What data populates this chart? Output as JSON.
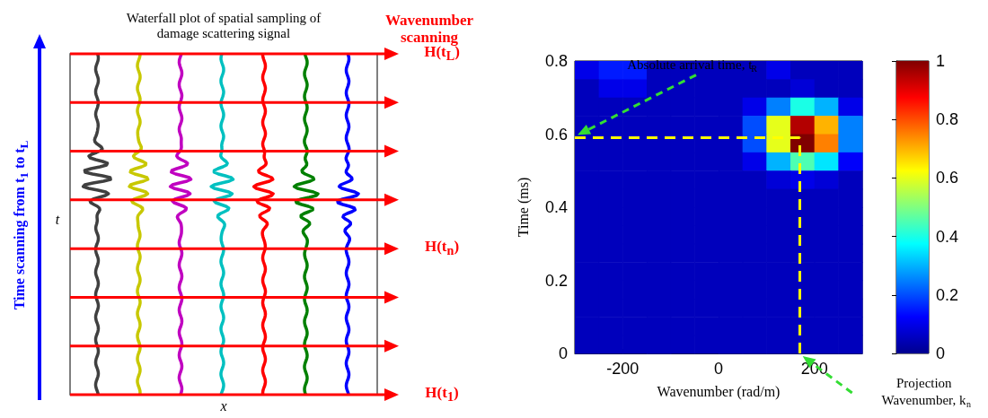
{
  "chart_data": [
    {
      "type": "other",
      "title": "Waterfall plot of spatial sampling of damage scattering signal",
      "xlabel": "x",
      "ylabel": "t",
      "annotations": [
        "H(t$_{L}$)",
        "H(t$_{n}$)",
        "H(t$_{1}$)",
        "Wavenumber scanning",
        "Time scanning from t$_{1}$ to t$_{L}$"
      ]
    },
    {
      "type": "heatmap",
      "xlabel": "Wavenumber (rad/m)",
      "ylabel": "Time (ms)",
      "xlim": [
        -300,
        300
      ],
      "xticks": [
        -200,
        0,
        200
      ],
      "ylim": [
        0,
        0.8
      ],
      "yticks": [
        0,
        0.2,
        0.4,
        0.6,
        0.8
      ],
      "clim": [
        0,
        1
      ],
      "cticks": [
        0,
        0.2,
        0.4,
        0.6,
        0.8,
        1
      ],
      "annotations": [
        "Absolute arrival time, t$_{R}$",
        "Projection Wavenumber, k$_{n}$"
      ],
      "ref_lines": [
        {
          "axis": "y",
          "value": 0.59,
          "color": "#ffff00",
          "line_style": "dashed"
        },
        {
          "axis": "x",
          "value": 170,
          "color": "#ffff00",
          "line_style": "dashed"
        }
      ],
      "cells": [
        [
          0.1,
          0.15,
          0.15,
          0.05,
          0.05,
          0.05,
          0.05,
          0.05,
          0.1,
          0.05,
          0.05,
          0.05
        ],
        [
          0.05,
          0.1,
          0.1,
          0.05,
          0.05,
          0.05,
          0.05,
          0.05,
          0.05,
          0.08,
          0.05,
          0.05
        ],
        [
          0.05,
          0.05,
          0.05,
          0.05,
          0.05,
          0.05,
          0.05,
          0.1,
          0.25,
          0.4,
          0.3,
          0.1
        ],
        [
          0.05,
          0.05,
          0.05,
          0.05,
          0.05,
          0.05,
          0.05,
          0.2,
          0.6,
          0.95,
          0.7,
          0.25
        ],
        [
          0.05,
          0.05,
          0.05,
          0.05,
          0.05,
          0.05,
          0.05,
          0.2,
          0.6,
          1,
          0.75,
          0.25
        ],
        [
          0.05,
          0.05,
          0.05,
          0.05,
          0.05,
          0.05,
          0.05,
          0.1,
          0.3,
          0.45,
          0.35,
          0.12
        ],
        [
          0.05,
          0.05,
          0.05,
          0.05,
          0.05,
          0.05,
          0.05,
          0.05,
          0.08,
          0.1,
          0.08,
          0.05
        ],
        [
          0.05,
          0.05,
          0.05,
          0.05,
          0.05,
          0.05,
          0.05,
          0.05,
          0.05,
          0.05,
          0.05,
          0.05
        ],
        [
          0.05,
          0.05,
          0.05,
          0.05,
          0.05,
          0.05,
          0.05,
          0.05,
          0.05,
          0.05,
          0.05,
          0.05
        ],
        [
          0.05,
          0.05,
          0.05,
          0.05,
          0.05,
          0.05,
          0.05,
          0.05,
          0.05,
          0.05,
          0.05,
          0.05
        ],
        [
          0.05,
          0.05,
          0.05,
          0.05,
          0.05,
          0.05,
          0.05,
          0.05,
          0.05,
          0.05,
          0.05,
          0.05
        ],
        [
          0.05,
          0.05,
          0.05,
          0.05,
          0.05,
          0.05,
          0.05,
          0.05,
          0.05,
          0.05,
          0.05,
          0.05
        ],
        [
          0.05,
          0.05,
          0.05,
          0.05,
          0.05,
          0.05,
          0.05,
          0.05,
          0.05,
          0.05,
          0.05,
          0.05
        ],
        [
          0.05,
          0.05,
          0.05,
          0.05,
          0.05,
          0.05,
          0.05,
          0.05,
          0.05,
          0.05,
          0.05,
          0.05
        ],
        [
          0.05,
          0.05,
          0.05,
          0.05,
          0.05,
          0.05,
          0.05,
          0.05,
          0.05,
          0.05,
          0.05,
          0.05
        ],
        [
          0.05,
          0.05,
          0.05,
          0.05,
          0.05,
          0.05,
          0.05,
          0.05,
          0.05,
          0.05,
          0.05,
          0.05
        ]
      ]
    }
  ]
}
